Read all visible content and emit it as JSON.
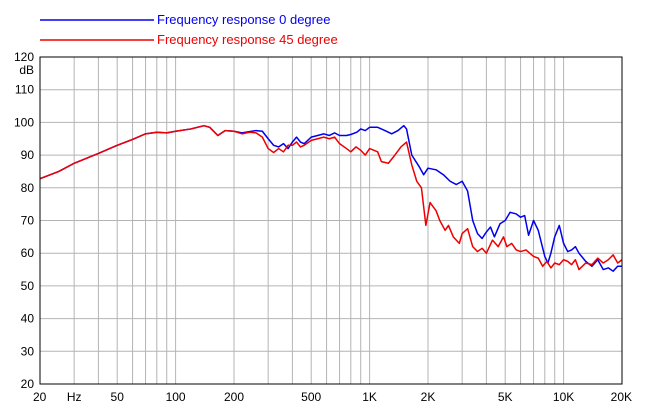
{
  "chart_data": {
    "type": "line",
    "xscale": "log",
    "xlim": [
      20,
      20000
    ],
    "ylim": [
      20,
      120
    ],
    "yunit_label": "dB",
    "xunit_label": "Hz",
    "grid": true,
    "legend_placement": "top-left",
    "yticks": [
      20,
      30,
      40,
      50,
      60,
      70,
      80,
      90,
      100,
      110,
      120
    ],
    "xtick_labels": [
      {
        "v": 20,
        "label": "20"
      },
      {
        "v": 50,
        "label": "50"
      },
      {
        "v": 100,
        "label": "100"
      },
      {
        "v": 200,
        "label": "200"
      },
      {
        "v": 500,
        "label": "500"
      },
      {
        "v": 1000,
        "label": "1K"
      },
      {
        "v": 2000,
        "label": "2K"
      },
      {
        "v": 5000,
        "label": "5K"
      },
      {
        "v": 10000,
        "label": "10K"
      },
      {
        "v": 20000,
        "label": "20K"
      }
    ],
    "series": [
      {
        "name": "Frequency response 0 degree",
        "color": "#0000ee",
        "points": [
          [
            20,
            82.8
          ],
          [
            25,
            85
          ],
          [
            30,
            87.5
          ],
          [
            40,
            90.5
          ],
          [
            50,
            93
          ],
          [
            60,
            94.8
          ],
          [
            70,
            96.5
          ],
          [
            80,
            97
          ],
          [
            90,
            96.8
          ],
          [
            100,
            97.3
          ],
          [
            120,
            98
          ],
          [
            140,
            99
          ],
          [
            150,
            98.5
          ],
          [
            165,
            96
          ],
          [
            180,
            97.5
          ],
          [
            200,
            97.3
          ],
          [
            220,
            96.8
          ],
          [
            240,
            97.2
          ],
          [
            260,
            97.5
          ],
          [
            280,
            97.3
          ],
          [
            300,
            95
          ],
          [
            320,
            93
          ],
          [
            340,
            92.5
          ],
          [
            360,
            93.5
          ],
          [
            380,
            92
          ],
          [
            400,
            94
          ],
          [
            420,
            95.5
          ],
          [
            440,
            94
          ],
          [
            460,
            93.5
          ],
          [
            500,
            95.5
          ],
          [
            540,
            96
          ],
          [
            580,
            96.5
          ],
          [
            620,
            96
          ],
          [
            660,
            96.8
          ],
          [
            700,
            96
          ],
          [
            760,
            96
          ],
          [
            800,
            96.3
          ],
          [
            860,
            97
          ],
          [
            900,
            98
          ],
          [
            950,
            97.5
          ],
          [
            1000,
            98.5
          ],
          [
            1100,
            98.5
          ],
          [
            1200,
            97.5
          ],
          [
            1300,
            96.5
          ],
          [
            1400,
            97.5
          ],
          [
            1500,
            99
          ],
          [
            1550,
            98
          ],
          [
            1650,
            90
          ],
          [
            1800,
            86.5
          ],
          [
            1900,
            84
          ],
          [
            2000,
            86
          ],
          [
            2200,
            85.5
          ],
          [
            2400,
            84
          ],
          [
            2600,
            82
          ],
          [
            2800,
            81
          ],
          [
            3000,
            82
          ],
          [
            3200,
            79
          ],
          [
            3400,
            70
          ],
          [
            3600,
            66
          ],
          [
            3800,
            64.5
          ],
          [
            4000,
            66.5
          ],
          [
            4200,
            68
          ],
          [
            4400,
            65
          ],
          [
            4700,
            69
          ],
          [
            5000,
            70
          ],
          [
            5300,
            72.5
          ],
          [
            5700,
            72
          ],
          [
            6000,
            71
          ],
          [
            6300,
            71.5
          ],
          [
            6600,
            65.5
          ],
          [
            7000,
            70
          ],
          [
            7400,
            67
          ],
          [
            8000,
            59
          ],
          [
            8300,
            57
          ],
          [
            8600,
            60
          ],
          [
            9000,
            65
          ],
          [
            9500,
            68.5
          ],
          [
            10000,
            63
          ],
          [
            10500,
            60.5
          ],
          [
            11000,
            61
          ],
          [
            11500,
            62
          ],
          [
            12000,
            60
          ],
          [
            13000,
            57.5
          ],
          [
            14000,
            56
          ],
          [
            15000,
            58
          ],
          [
            16000,
            55
          ],
          [
            17000,
            55.5
          ],
          [
            18000,
            54.5
          ],
          [
            19000,
            56
          ],
          [
            20000,
            56
          ]
        ]
      },
      {
        "name": "Frequency response 45 degree",
        "color": "#ee0000",
        "points": [
          [
            20,
            82.8
          ],
          [
            25,
            85
          ],
          [
            30,
            87.5
          ],
          [
            40,
            90.5
          ],
          [
            50,
            93
          ],
          [
            60,
            94.8
          ],
          [
            70,
            96.5
          ],
          [
            80,
            97
          ],
          [
            90,
            96.8
          ],
          [
            100,
            97.3
          ],
          [
            120,
            98
          ],
          [
            140,
            99
          ],
          [
            150,
            98.5
          ],
          [
            165,
            96
          ],
          [
            180,
            97.5
          ],
          [
            200,
            97.3
          ],
          [
            220,
            96.5
          ],
          [
            240,
            97
          ],
          [
            260,
            96.8
          ],
          [
            280,
            95.5
          ],
          [
            300,
            92
          ],
          [
            320,
            90.8
          ],
          [
            340,
            92
          ],
          [
            360,
            91
          ],
          [
            380,
            93
          ],
          [
            400,
            93
          ],
          [
            420,
            94
          ],
          [
            440,
            92.5
          ],
          [
            460,
            93
          ],
          [
            500,
            94.5
          ],
          [
            540,
            95
          ],
          [
            580,
            95.5
          ],
          [
            620,
            95
          ],
          [
            660,
            95.5
          ],
          [
            700,
            93.5
          ],
          [
            760,
            92
          ],
          [
            800,
            91
          ],
          [
            850,
            92.5
          ],
          [
            900,
            91.5
          ],
          [
            950,
            90
          ],
          [
            1000,
            92
          ],
          [
            1100,
            91
          ],
          [
            1150,
            88
          ],
          [
            1250,
            87.5
          ],
          [
            1350,
            90
          ],
          [
            1450,
            92.5
          ],
          [
            1550,
            94
          ],
          [
            1650,
            87
          ],
          [
            1750,
            82
          ],
          [
            1850,
            80
          ],
          [
            1950,
            68.5
          ],
          [
            2050,
            75.5
          ],
          [
            2200,
            73
          ],
          [
            2300,
            70
          ],
          [
            2450,
            67
          ],
          [
            2550,
            68.5
          ],
          [
            2700,
            65
          ],
          [
            2900,
            63
          ],
          [
            3000,
            66
          ],
          [
            3200,
            67.5
          ],
          [
            3400,
            62
          ],
          [
            3600,
            60.5
          ],
          [
            3800,
            61.5
          ],
          [
            4000,
            60
          ],
          [
            4300,
            64
          ],
          [
            4600,
            62
          ],
          [
            4900,
            65
          ],
          [
            5100,
            62
          ],
          [
            5400,
            63
          ],
          [
            5700,
            61
          ],
          [
            6000,
            60.5
          ],
          [
            6400,
            61
          ],
          [
            7000,
            59
          ],
          [
            7400,
            58.5
          ],
          [
            7800,
            56
          ],
          [
            8200,
            57.5
          ],
          [
            8600,
            55.5
          ],
          [
            9000,
            57
          ],
          [
            9500,
            56.5
          ],
          [
            10000,
            58
          ],
          [
            10500,
            57.5
          ],
          [
            11000,
            56.5
          ],
          [
            11500,
            58
          ],
          [
            12000,
            55
          ],
          [
            13000,
            57
          ],
          [
            14000,
            56.5
          ],
          [
            15000,
            58.5
          ],
          [
            16000,
            57
          ],
          [
            17000,
            58
          ],
          [
            18000,
            59.5
          ],
          [
            19000,
            57
          ],
          [
            20000,
            58
          ]
        ]
      }
    ]
  }
}
